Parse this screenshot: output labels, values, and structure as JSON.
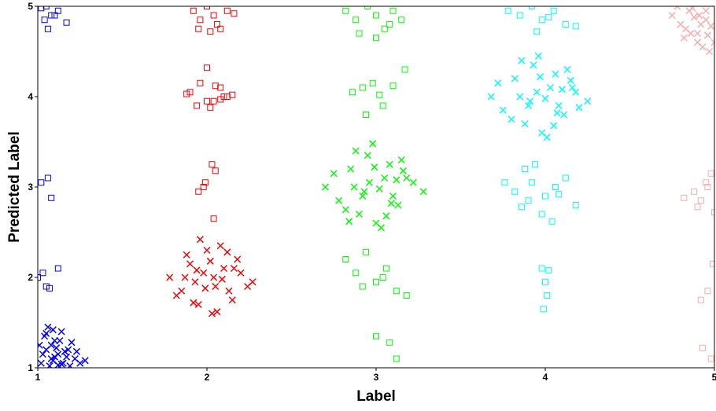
{
  "chart_data": {
    "type": "scatter",
    "xlabel": "Label",
    "ylabel": "Predicted Label",
    "xlim": [
      1,
      5
    ],
    "ylim": [
      1,
      5
    ],
    "xticks": [
      1,
      2,
      3,
      4,
      5
    ],
    "yticks": [
      1,
      2,
      3,
      4,
      5
    ],
    "series": [
      {
        "color": "#0000ff",
        "marker": "x",
        "x": [
          1.02,
          1.05,
          1.08,
          1.1,
          1.12,
          1.15,
          1.18,
          1.22,
          1.25,
          1.04,
          1.07,
          1.11,
          1.14,
          1.17,
          1.2,
          1.03,
          1.06,
          1.09,
          1.13,
          1.16,
          1.08,
          1.12,
          1.05,
          1.1,
          1.19,
          1.28,
          1.01,
          1.23,
          1.14,
          1.09
        ],
        "values": [
          1.05,
          1.2,
          1.1,
          1.3,
          1.15,
          1.05,
          1.2,
          1.1,
          1.05,
          1.35,
          1.02,
          1.22,
          1.4,
          1.12,
          1.28,
          1.15,
          1.45,
          1.08,
          1.3,
          1.18,
          1.25,
          1.03,
          1.38,
          1.12,
          1.02,
          1.08,
          1.25,
          1.18,
          1.04,
          1.42
        ]
      },
      {
        "color": "#0000ff",
        "marker": "square",
        "x": [
          1.02,
          1.05,
          1.08,
          1.12,
          1.17,
          1.04,
          1.06,
          1.1,
          1.02,
          1.06,
          1.08,
          1.03,
          1.12,
          1.05,
          1.07,
          1.0
        ],
        "values": [
          4.98,
          5.0,
          4.9,
          4.95,
          4.82,
          4.85,
          4.75,
          4.9,
          3.05,
          3.1,
          2.88,
          2.05,
          2.1,
          1.9,
          1.88,
          2.0
        ]
      },
      {
        "color": "#ff0000",
        "marker": "x",
        "x": [
          1.78,
          1.85,
          1.9,
          1.95,
          2.0,
          2.05,
          2.1,
          2.15,
          2.2,
          2.27,
          1.82,
          1.88,
          1.93,
          1.98,
          2.03,
          2.08,
          2.13,
          2.18,
          2.24,
          1.87,
          1.96,
          2.06,
          2.16,
          1.92,
          2.02,
          2.12,
          1.99,
          2.09,
          1.94,
          2.04
        ],
        "values": [
          2.0,
          1.85,
          2.15,
          1.7,
          2.3,
          1.9,
          2.1,
          1.75,
          2.05,
          1.95,
          1.8,
          2.25,
          1.95,
          2.05,
          1.6,
          2.35,
          1.85,
          2.2,
          1.9,
          2.0,
          2.42,
          1.62,
          2.1,
          1.72,
          2.18,
          2.28,
          1.88,
          1.98,
          2.08,
          2.0
        ]
      },
      {
        "color": "#ff0000",
        "marker": "square",
        "x": [
          1.92,
          1.96,
          2.0,
          2.04,
          2.08,
          2.12,
          2.16,
          1.95,
          2.02,
          2.06,
          1.9,
          1.96,
          2.0,
          2.04,
          2.08,
          2.12,
          1.88,
          1.94,
          2.0,
          2.05,
          2.1,
          2.15,
          2.02,
          2.08,
          1.98,
          2.03,
          2.05,
          1.95,
          2.04,
          1.99
        ],
        "values": [
          4.95,
          4.85,
          5.0,
          4.9,
          4.75,
          4.95,
          4.92,
          4.75,
          4.72,
          4.8,
          4.05,
          4.15,
          4.32,
          3.95,
          4.1,
          4.0,
          4.03,
          3.9,
          3.95,
          4.12,
          4.0,
          4.02,
          3.88,
          3.97,
          3.0,
          3.25,
          3.18,
          2.95,
          2.65,
          3.05
        ]
      },
      {
        "color": "#00ff00",
        "marker": "x",
        "x": [
          2.7,
          2.78,
          2.85,
          2.9,
          2.95,
          3.0,
          3.05,
          3.1,
          3.15,
          3.22,
          3.28,
          2.75,
          2.82,
          2.88,
          2.93,
          2.98,
          3.03,
          3.08,
          3.13,
          3.18,
          2.87,
          2.96,
          3.06,
          3.16,
          2.92,
          3.02,
          3.12,
          2.99,
          3.09,
          2.84
        ],
        "values": [
          3.0,
          2.85,
          3.2,
          2.7,
          3.35,
          2.6,
          3.1,
          2.9,
          3.3,
          3.05,
          2.95,
          3.15,
          2.75,
          3.4,
          2.95,
          3.48,
          2.55,
          3.25,
          2.8,
          3.1,
          3.0,
          3.05,
          2.68,
          3.18,
          2.9,
          2.98,
          3.08,
          3.22,
          2.82,
          2.62
        ]
      },
      {
        "color": "#00ff00",
        "marker": "square",
        "x": [
          2.82,
          2.88,
          2.95,
          3.0,
          3.05,
          3.1,
          3.15,
          2.9,
          3.0,
          3.08,
          2.86,
          2.92,
          2.98,
          3.04,
          3.1,
          3.17,
          2.94,
          3.02,
          2.82,
          2.88,
          2.94,
          3.0,
          3.06,
          3.12,
          3.18,
          2.92,
          3.04,
          3.0,
          3.08,
          3.12
        ],
        "values": [
          4.95,
          4.85,
          5.0,
          4.9,
          4.75,
          4.95,
          4.85,
          4.7,
          4.65,
          4.8,
          4.05,
          4.1,
          4.15,
          3.9,
          4.12,
          4.3,
          3.8,
          4.02,
          2.2,
          2.05,
          2.28,
          1.95,
          2.1,
          1.85,
          1.8,
          1.9,
          2.0,
          1.35,
          1.28,
          1.1
        ]
      },
      {
        "color": "#00ffff",
        "marker": "x",
        "x": [
          3.68,
          3.75,
          3.82,
          3.88,
          3.93,
          3.98,
          4.03,
          4.08,
          4.13,
          4.18,
          4.25,
          3.72,
          3.8,
          3.86,
          3.91,
          3.96,
          4.01,
          4.06,
          4.11,
          4.16,
          3.85,
          3.95,
          4.05,
          4.15,
          3.9,
          4.0,
          4.1,
          3.97,
          4.07,
          4.2
        ],
        "values": [
          4.0,
          3.85,
          4.2,
          3.7,
          4.35,
          3.6,
          4.1,
          3.9,
          4.3,
          4.05,
          3.95,
          4.15,
          3.75,
          4.4,
          3.95,
          4.45,
          3.55,
          4.25,
          3.8,
          4.1,
          4.0,
          4.05,
          3.68,
          4.18,
          3.9,
          3.98,
          4.08,
          4.22,
          3.82,
          3.88
        ]
      },
      {
        "color": "#00ffff",
        "marker": "square",
        "x": [
          3.78,
          3.85,
          3.92,
          3.98,
          4.05,
          4.12,
          4.18,
          3.95,
          4.02,
          3.76,
          3.82,
          3.88,
          3.94,
          4.0,
          4.06,
          4.12,
          4.18,
          3.9,
          3.98,
          4.04,
          3.92,
          4.08,
          3.86,
          3.98,
          4.02,
          4.0,
          4.01,
          3.99
        ],
        "values": [
          4.95,
          4.9,
          5.0,
          4.85,
          4.95,
          4.8,
          4.78,
          4.72,
          4.88,
          3.05,
          2.95,
          3.2,
          3.25,
          2.9,
          3.0,
          3.1,
          2.8,
          2.85,
          2.7,
          2.62,
          3.05,
          2.92,
          2.78,
          2.1,
          2.08,
          1.95,
          1.8,
          1.65
        ]
      },
      {
        "color": "#ffaaaa",
        "marker": "x",
        "x": [
          4.75,
          4.8,
          4.85,
          4.9,
          4.95,
          5.0,
          4.78,
          4.83,
          4.88,
          4.93,
          4.98,
          4.82,
          4.87,
          4.92,
          4.97,
          4.86,
          4.91,
          4.96,
          4.9,
          4.95
        ],
        "values": [
          4.9,
          4.8,
          4.95,
          4.7,
          4.85,
          4.6,
          5.0,
          4.75,
          4.88,
          4.55,
          4.78,
          4.65,
          4.98,
          4.8,
          4.5,
          4.7,
          4.9,
          4.68,
          4.6,
          4.95
        ]
      },
      {
        "color": "#ffaaaa",
        "marker": "square",
        "x": [
          4.82,
          4.88,
          4.92,
          4.95,
          4.98,
          5.0,
          4.9,
          4.96,
          4.92,
          4.96,
          4.99,
          4.93,
          4.98
        ],
        "values": [
          2.88,
          2.95,
          2.85,
          3.05,
          3.15,
          2.72,
          2.78,
          3.0,
          1.75,
          1.85,
          2.15,
          1.22,
          1.1
        ]
      }
    ]
  }
}
